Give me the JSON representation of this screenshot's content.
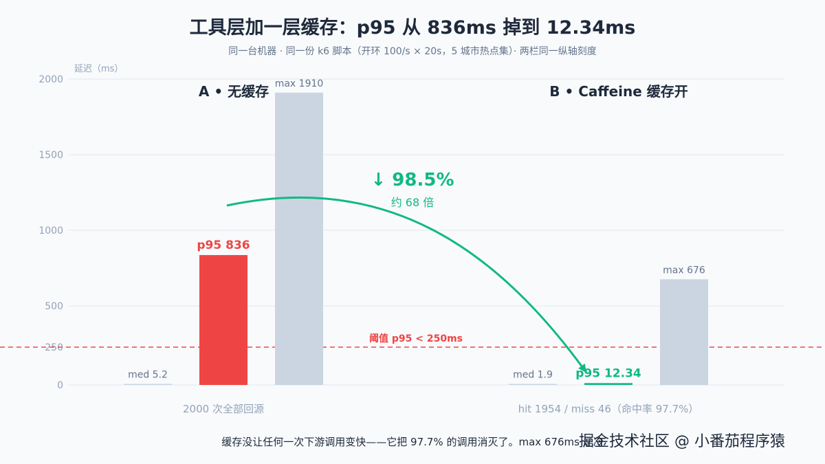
{
  "header": {
    "title": "工具层加一层缓存：p95 从 836ms 掉到 12.34ms",
    "subtitle": "同一台机器 · 同一份 k6 脚本（开环 100/s × 20s，5 城市热点集）· 两栏同一纵轴刻度"
  },
  "chart_data": {
    "type": "bar",
    "ylabel": "延迟（ms）",
    "ylim": [
      0,
      2000
    ],
    "yticks": [
      0,
      250,
      500,
      1000,
      1500,
      2000
    ],
    "grid": true,
    "groups": [
      {
        "title": "A • 无缓存",
        "caption": "2000 次全部回源",
        "bars": [
          {
            "metric": "median",
            "value": 5.2,
            "label": "med 5.2",
            "color": "#cbd5e1"
          },
          {
            "metric": "p95",
            "value": 836,
            "label": "p95 836",
            "color": "#ef4444"
          },
          {
            "metric": "max",
            "value": 1910,
            "label": "max 1910",
            "color": "#cbd5e1"
          }
        ]
      },
      {
        "title": "B • Caffeine 缓存开",
        "caption": "hit 1954 / miss 46（命中率 97.7%）",
        "bars": [
          {
            "metric": "median",
            "value": 1.9,
            "label": "med 1.9",
            "color": "#cbd5e1"
          },
          {
            "metric": "p95",
            "value": 12.34,
            "label": "p95 12.34",
            "color": "#10b981"
          },
          {
            "metric": "max",
            "value": 676,
            "label": "max 676",
            "color": "#cbd5e1"
          }
        ]
      }
    ],
    "threshold": {
      "value": 250,
      "label": "阈值 p95 < 250ms",
      "color": "#ef4444"
    },
    "annotation": {
      "text": "↓ 98.5%",
      "subtext": "约 68 倍",
      "color": "#10b981"
    }
  },
  "footer": {
    "text": "缓存没让任何一次下游调用变快——它把 97.7% 的调用消灭了。max 676ms 是冷"
  },
  "watermark": {
    "text": "掘金技术社区 @ 小番茄程序猿"
  }
}
